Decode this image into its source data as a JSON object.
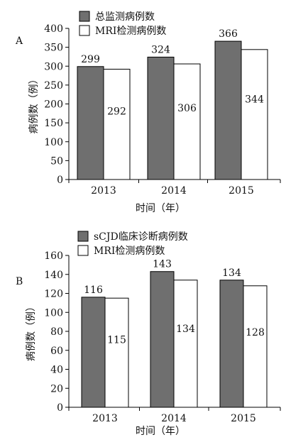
{
  "chart_data": [
    {
      "type": "bar",
      "panel_label": "A",
      "categories": [
        "2013",
        "2014",
        "2015"
      ],
      "series": [
        {
          "name": "总监测病例数",
          "values": [
            299,
            324,
            366
          ],
          "color": "#6f6f6f"
        },
        {
          "name": "MRI检测病例数",
          "values": [
            292,
            306,
            344
          ],
          "color": "#ffffff"
        }
      ],
      "xlabel": "时间（年）",
      "ylabel": "病例数（例）",
      "ylim": [
        0,
        400
      ],
      "yticks": [
        0,
        50,
        100,
        150,
        200,
        250,
        300,
        350,
        400
      ],
      "legend_position": "top-left",
      "grid": false
    },
    {
      "type": "bar",
      "panel_label": "B",
      "categories": [
        "2013",
        "2014",
        "2015"
      ],
      "series": [
        {
          "name": "sCJD临床诊断病例数",
          "values": [
            116,
            143,
            134
          ],
          "color": "#6f6f6f"
        },
        {
          "name": "MRI检测病例数",
          "values": [
            115,
            134,
            128
          ],
          "color": "#ffffff"
        }
      ],
      "xlabel": "时间（年）",
      "ylabel": "病例数（例）",
      "ylim": [
        0,
        160
      ],
      "yticks": [
        0,
        20,
        40,
        60,
        80,
        100,
        120,
        140,
        160
      ],
      "legend_position": "top-left",
      "grid": false
    }
  ]
}
